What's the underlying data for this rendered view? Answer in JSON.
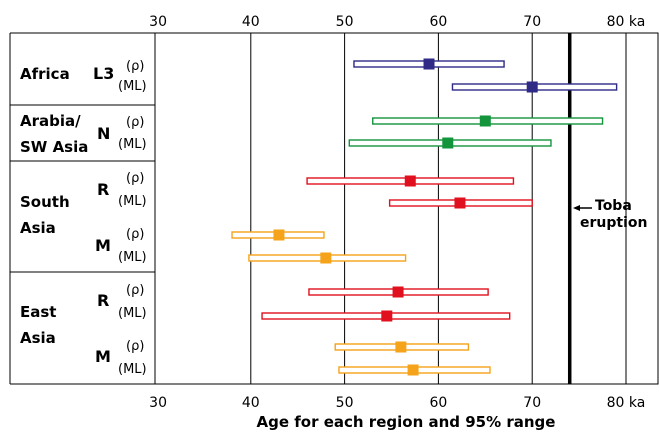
{
  "chart_data": {
    "type": "scatter",
    "xlabel": "Age for each region and 95% range",
    "x_ticks": [
      "30",
      "40",
      "50",
      "60",
      "70",
      "80 ka"
    ],
    "xlim": [
      30,
      80
    ],
    "annotation": {
      "text": [
        "Toba",
        "eruption"
      ],
      "x": 74
    },
    "regions": [
      {
        "label": [
          "Africa"
        ]
      },
      {
        "label": [
          "Arabia/",
          "SW Asia"
        ]
      },
      {
        "label": [
          "South",
          "Asia"
        ]
      },
      {
        "label": [
          "East",
          "Asia"
        ]
      }
    ],
    "haplogroups": [
      {
        "label": "L3",
        "region": 0
      },
      {
        "label": "N",
        "region": 1
      },
      {
        "label": "R",
        "region": 2
      },
      {
        "label": "M",
        "region": 2
      },
      {
        "label": "R",
        "region": 3
      },
      {
        "label": "M",
        "region": 3
      }
    ],
    "methods": [
      "(ρ)",
      "(ML)"
    ],
    "series": [
      {
        "region": "Africa",
        "haplogroup": "L3",
        "method": "(ρ)",
        "age": 59,
        "low": 51,
        "high": 67,
        "color": "#2e2a85"
      },
      {
        "region": "Africa",
        "haplogroup": "L3",
        "method": "(ML)",
        "age": 70,
        "low": 61.5,
        "high": 79,
        "color": "#2e2a85"
      },
      {
        "region": "Arabia/SW Asia",
        "haplogroup": "N",
        "method": "(ρ)",
        "age": 65,
        "low": 53,
        "high": 77.5,
        "color": "#14953c"
      },
      {
        "region": "Arabia/SW Asia",
        "haplogroup": "N",
        "method": "(ML)",
        "age": 61,
        "low": 50.5,
        "high": 72,
        "color": "#14953c"
      },
      {
        "region": "South Asia",
        "haplogroup": "R",
        "method": "(ρ)",
        "age": 57,
        "low": 46,
        "high": 68,
        "color": "#e0101e"
      },
      {
        "region": "South Asia",
        "haplogroup": "R",
        "method": "(ML)",
        "age": 62.3,
        "low": 54.8,
        "high": 70,
        "color": "#e0101e"
      },
      {
        "region": "South Asia",
        "haplogroup": "M",
        "method": "(ρ)",
        "age": 43,
        "low": 38,
        "high": 47.8,
        "color": "#f5a31a"
      },
      {
        "region": "South Asia",
        "haplogroup": "M",
        "method": "(ML)",
        "age": 48,
        "low": 39.8,
        "high": 56.5,
        "color": "#f5a31a"
      },
      {
        "region": "East Asia",
        "haplogroup": "R",
        "method": "(ρ)",
        "age": 55.7,
        "low": 46.2,
        "high": 65.3,
        "color": "#e0101e"
      },
      {
        "region": "East Asia",
        "haplogroup": "R",
        "method": "(ML)",
        "age": 54.5,
        "low": 41.2,
        "high": 67.6,
        "color": "#e0101e"
      },
      {
        "region": "East Asia",
        "haplogroup": "M",
        "method": "(ρ)",
        "age": 56,
        "low": 49,
        "high": 63.2,
        "color": "#f5a31a"
      },
      {
        "region": "East Asia",
        "haplogroup": "M",
        "method": "(ML)",
        "age": 57.3,
        "low": 49.4,
        "high": 65.5,
        "color": "#f5a31a"
      }
    ],
    "grid": true,
    "legend": "none"
  }
}
